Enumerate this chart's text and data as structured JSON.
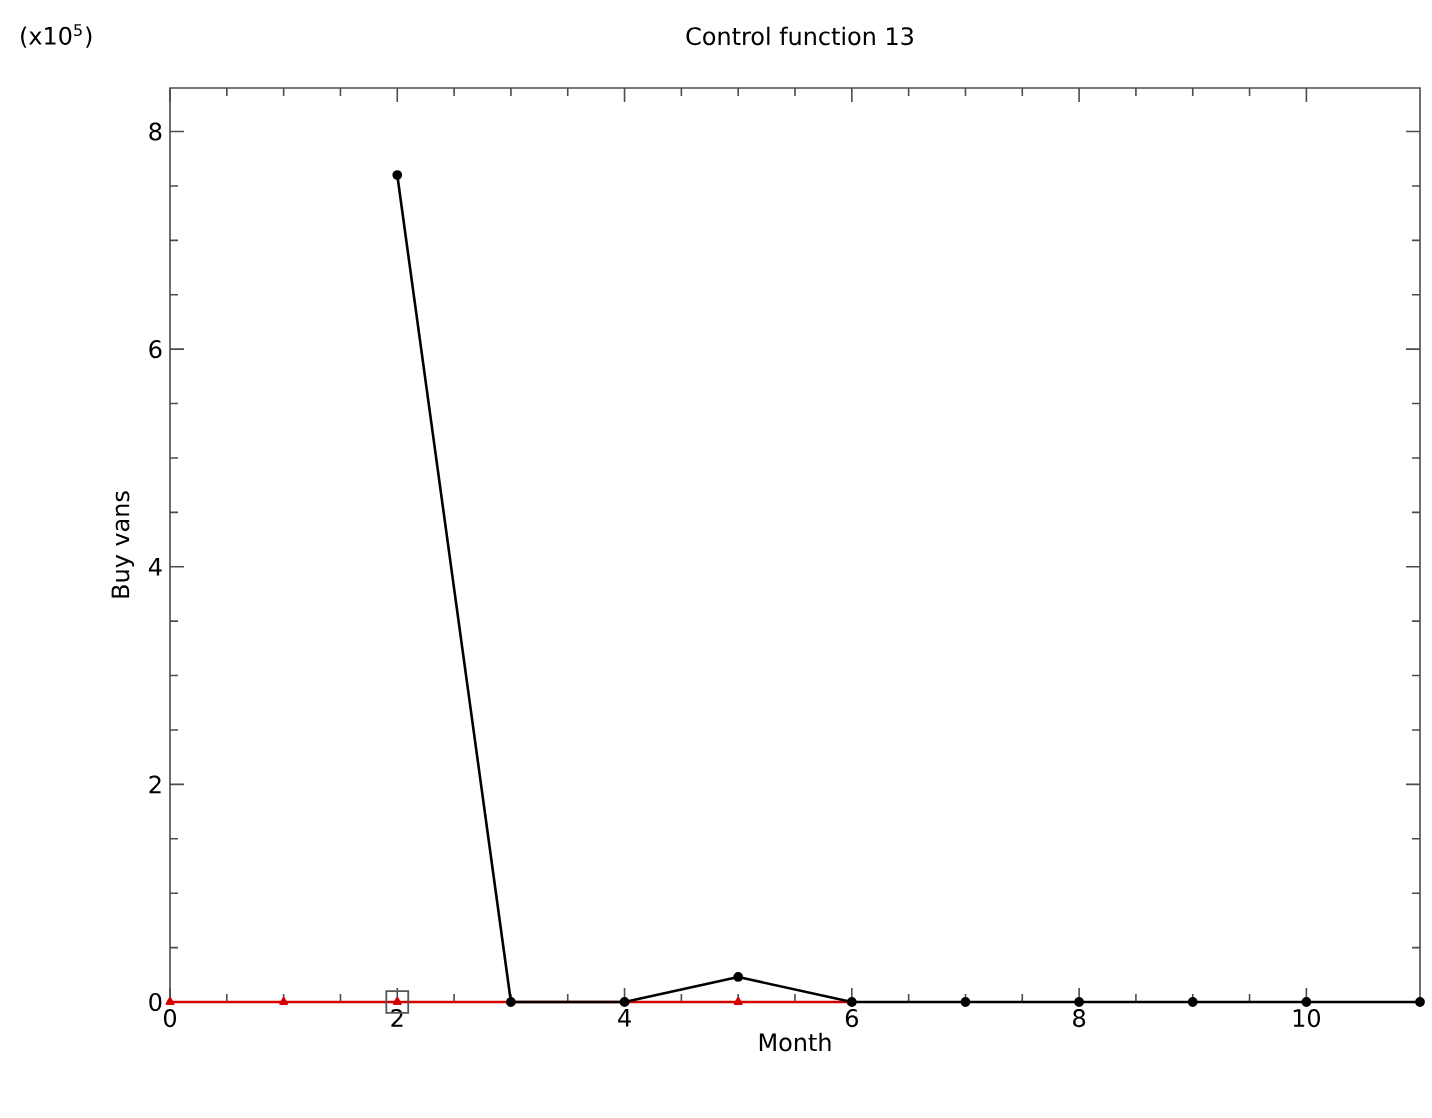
{
  "chart_data": {
    "type": "line",
    "title": "Control function 13",
    "xlabel": "Month",
    "ylabel": "Buy vans",
    "annotations": [
      "(x10$^{5}$)"
    ],
    "series": [
      {
        "color": "#d40000",
        "marker": "triangle",
        "x": [
          0,
          1,
          2,
          3,
          4,
          5,
          6
        ],
        "values": [
          0,
          0,
          0,
          0,
          0,
          0,
          0
        ]
      },
      {
        "color": "#000000",
        "marker": "circle",
        "x": [
          2,
          3,
          4,
          5,
          6,
          7,
          8,
          9,
          10,
          11
        ],
        "values": [
          7.6,
          0,
          0,
          0.23,
          0,
          0,
          0,
          0,
          0,
          0
        ]
      },
      {
        "type": "scatter",
        "color": "#555555",
        "marker": "square",
        "x": [
          2
        ],
        "values": [
          0
        ]
      }
    ],
    "xlim": [
      0,
      11
    ],
    "ylim": [
      0,
      8.4
    ],
    "xticks": [
      0,
      2,
      4,
      6,
      8,
      10
    ],
    "yticks": [
      0,
      2,
      4,
      6,
      8
    ]
  }
}
